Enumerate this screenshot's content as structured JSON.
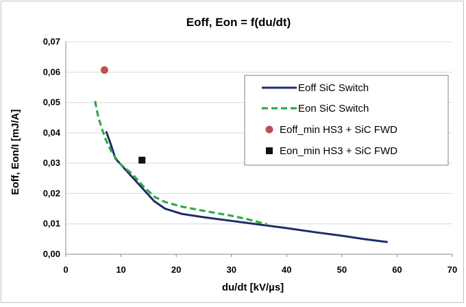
{
  "chart_data": {
    "type": "line",
    "title": "Eoff, Eon = f(du/dt)",
    "xlabel": "du/dt [kV/µs]",
    "ylabel": "Eoff, Eon/I [mJ/A]",
    "xlim": [
      0,
      70
    ],
    "ylim": [
      0,
      0.07
    ],
    "x_ticks": [
      0,
      10,
      20,
      30,
      40,
      50,
      60,
      70
    ],
    "x_tick_labels": [
      "0",
      "10",
      "20",
      "30",
      "40",
      "50",
      "60",
      "70"
    ],
    "y_ticks": [
      0,
      0.01,
      0.02,
      0.03,
      0.04,
      0.05,
      0.06,
      0.07
    ],
    "y_tick_labels": [
      "0,00",
      "0,01",
      "0,02",
      "0,03",
      "0,04",
      "0,05",
      "0,06",
      "0,07"
    ],
    "grid": "horizontal",
    "legend_position": "right",
    "series": [
      {
        "name": "Eoff SiC Switch",
        "style": "solid-line",
        "color": "#1f2a6b",
        "x": [
          7.3,
          8,
          9,
          10.5,
          12,
          14,
          16,
          18,
          21,
          25,
          30,
          35,
          40,
          45,
          50,
          54,
          58.3
        ],
        "y": [
          0.0405,
          0.037,
          0.0315,
          0.0285,
          0.0255,
          0.0215,
          0.0175,
          0.015,
          0.0133,
          0.0122,
          0.011,
          0.0098,
          0.0086,
          0.0073,
          0.0061,
          0.005,
          0.004
        ]
      },
      {
        "name": "Eon SiC Switch",
        "style": "dashed-line",
        "color": "#2eaa4a",
        "x": [
          5.3,
          5.8,
          6.5,
          7.3,
          8.5,
          10,
          12,
          14,
          16,
          18,
          21,
          25,
          30,
          33,
          36.5
        ],
        "y": [
          0.0505,
          0.046,
          0.0415,
          0.0375,
          0.033,
          0.0295,
          0.0265,
          0.0225,
          0.019,
          0.0172,
          0.0157,
          0.0143,
          0.0127,
          0.0115,
          0.0098
        ]
      },
      {
        "name": "Eoff_min HS3 + SiC FWD",
        "style": "circle-marker",
        "color": "#c0504d",
        "x": [
          7
        ],
        "y": [
          0.0607
        ]
      },
      {
        "name": "Eon_min HS3 + SiC FWD",
        "style": "square-marker",
        "color": "#111111",
        "x": [
          13.8
        ],
        "y": [
          0.031
        ]
      }
    ]
  }
}
